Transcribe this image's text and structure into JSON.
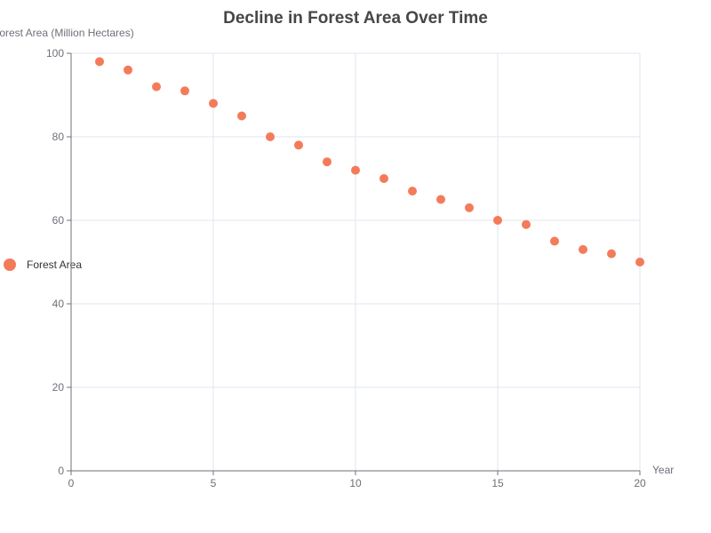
{
  "chart_data": {
    "type": "scatter",
    "title": "Decline in Forest Area Over Time",
    "xlabel": "Year",
    "ylabel": "Forest Area (Million Hectares)",
    "xlim": [
      0,
      20
    ],
    "ylim": [
      0,
      100
    ],
    "x_ticks": [
      0,
      5,
      10,
      15,
      20
    ],
    "y_ticks": [
      0,
      20,
      40,
      60,
      80,
      100
    ],
    "grid": true,
    "legend_position": "left",
    "series": [
      {
        "name": "Forest Area",
        "color": "#f47b5a",
        "x": [
          1,
          2,
          3,
          4,
          5,
          6,
          7,
          8,
          9,
          10,
          11,
          12,
          13,
          14,
          15,
          16,
          17,
          18,
          19,
          20
        ],
        "y": [
          98,
          96,
          92,
          91,
          88,
          85,
          80,
          78,
          74,
          72,
          70,
          67,
          65,
          63,
          60,
          59,
          55,
          53,
          52,
          50
        ]
      }
    ]
  }
}
